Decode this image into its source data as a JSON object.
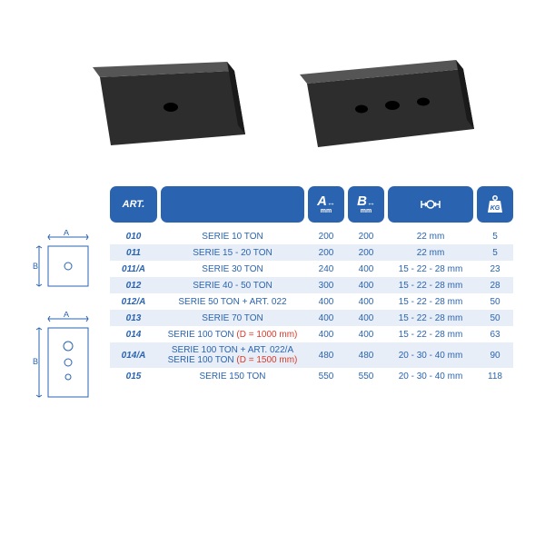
{
  "brand_blue": "#2a64b0",
  "stripe_bg": "#e8eef7",
  "red": "#d83a2a",
  "diagram_stroke": "#2a64b0",
  "header": {
    "art": "ART.",
    "a_letter": "A",
    "b_letter": "B",
    "dim_unit": "mm",
    "kg_label": "KG"
  },
  "diagram_labels": {
    "A": "A",
    "B": "B"
  },
  "rows": [
    {
      "art": "010",
      "desc_plain": "SERIE 10 TON",
      "a": "200",
      "b": "200",
      "hole": "22 mm",
      "kg": "5"
    },
    {
      "art": "011",
      "desc_plain": "SERIE 15 - 20 TON",
      "a": "200",
      "b": "200",
      "hole": "22 mm",
      "kg": "5"
    },
    {
      "art": "011/A",
      "desc_plain": "SERIE 30 TON",
      "a": "240",
      "b": "400",
      "hole": "15 - 22 - 28 mm",
      "kg": "23"
    },
    {
      "art": "012",
      "desc_plain": "SERIE 40 - 50 TON",
      "a": "300",
      "b": "400",
      "hole": "15 - 22 - 28 mm",
      "kg": "28"
    },
    {
      "art": "012/A",
      "desc_plain": "SERIE 50 TON + ART. 022",
      "a": "400",
      "b": "400",
      "hole": "15 - 22 - 28 mm",
      "kg": "50"
    },
    {
      "art": "013",
      "desc_plain": "SERIE 70 TON",
      "a": "400",
      "b": "400",
      "hole": "15 - 22 - 28 mm",
      "kg": "50"
    },
    {
      "art": "014",
      "desc_pre": "SERIE 100 TON ",
      "desc_red": "(D = 1000 mm)",
      "a": "400",
      "b": "400",
      "hole": "15 - 22 - 28 mm",
      "kg": "63"
    },
    {
      "art": "014/A",
      "desc_line1": "SERIE 100 TON + ART. 022/A",
      "desc_pre2": "SERIE 100 TON ",
      "desc_red2": "(D = 1500 mm)",
      "a": "480",
      "b": "480",
      "hole": "20 - 30 - 40 mm",
      "kg": "90"
    },
    {
      "art": "015",
      "desc_plain": "SERIE 150 TON",
      "a": "550",
      "b": "550",
      "hole": "20 - 30 - 40 mm",
      "kg": "118"
    }
  ]
}
